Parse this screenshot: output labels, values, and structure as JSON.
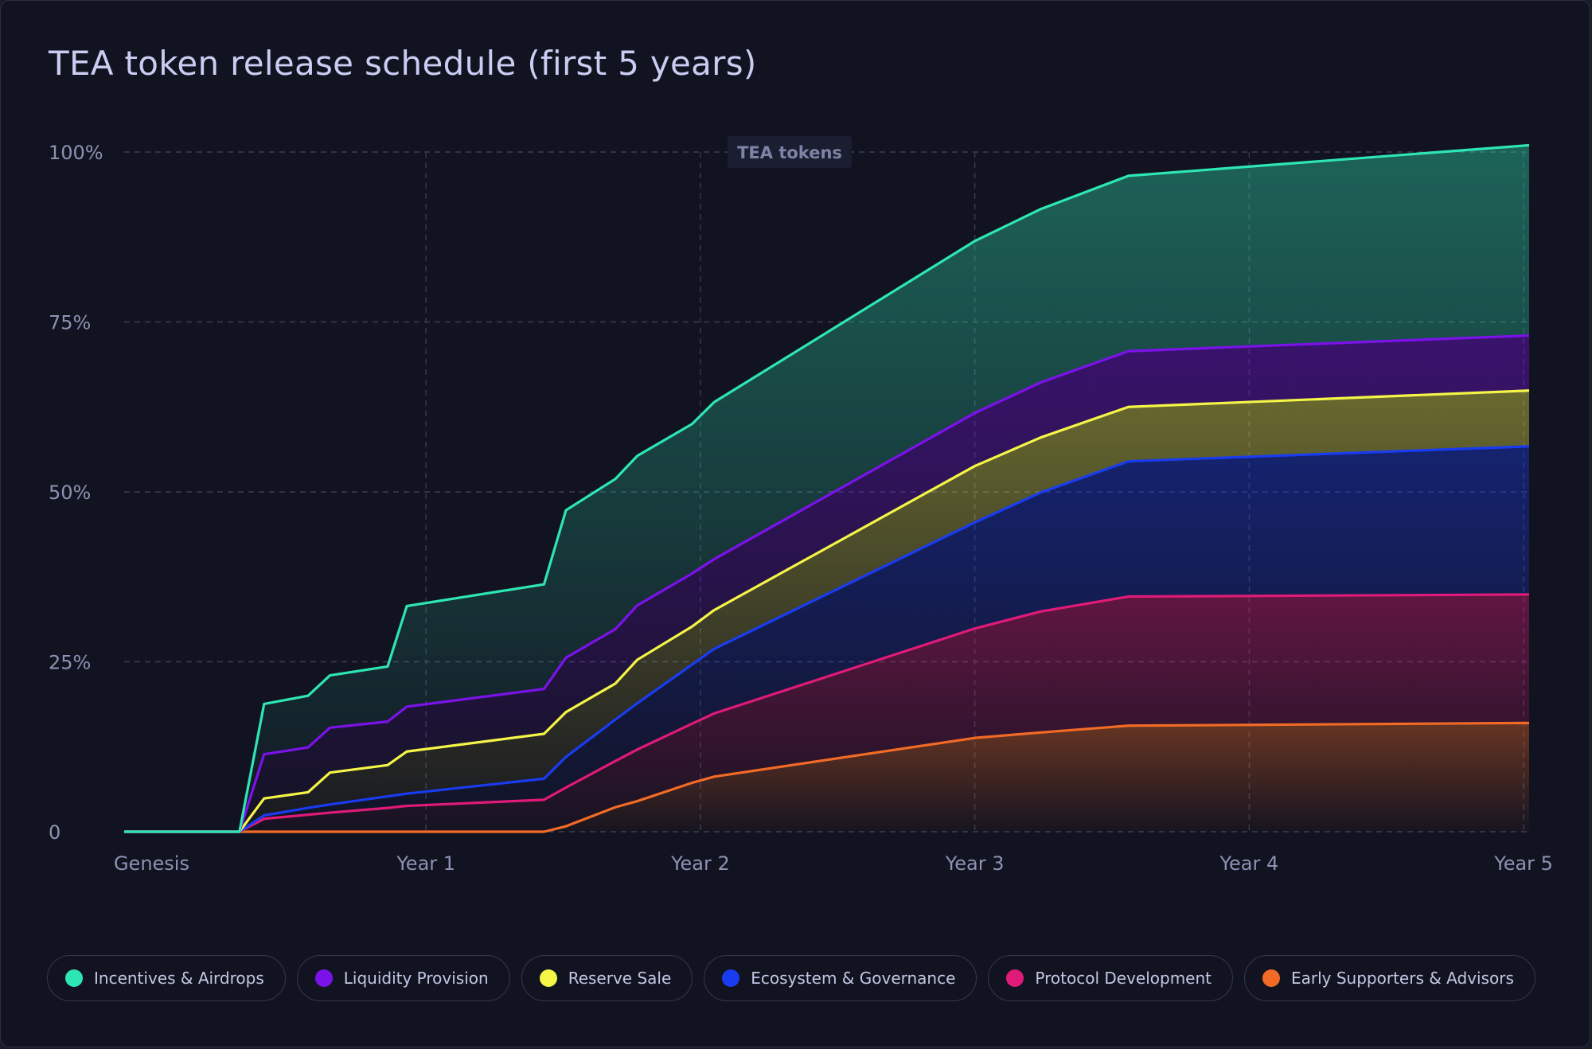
{
  "chart_data": {
    "type": "area",
    "title": "TEA token release schedule (first 5 years)",
    "tooltip_label": "TEA tokens",
    "ylabel": "",
    "xlabel": "",
    "yticks": [
      "0",
      "25%",
      "50%",
      "75%",
      "100%"
    ],
    "xticks": [
      "Genesis",
      "Year 1",
      "Year 2",
      "Year 3",
      "Year 4",
      "Year 5"
    ],
    "xlim": [
      -0.1,
      5.02
    ],
    "ylim": [
      0,
      100
    ],
    "x": [
      -0.1,
      0.32,
      0.41,
      0.57,
      0.65,
      0.86,
      0.93,
      1.43,
      1.51,
      1.69,
      1.77,
      1.97,
      2.05,
      3.0,
      3.24,
      3.56,
      5.02
    ],
    "series": [
      {
        "name": "Early Supporters & Advisors",
        "color": "#f26b26",
        "values": [
          0,
          0,
          0,
          0,
          0,
          0,
          0,
          0,
          0.8,
          3.6,
          4.5,
          7.2,
          8.1,
          13.8,
          14.6,
          15.6,
          16.0
        ]
      },
      {
        "name": "Protocol Development",
        "color": "#e01a78",
        "values": [
          0,
          0,
          1.9,
          2.5,
          2.8,
          3.5,
          3.8,
          4.7,
          6.5,
          10.4,
          12.1,
          15.9,
          17.4,
          29.9,
          32.4,
          34.6,
          34.9
        ]
      },
      {
        "name": "Ecosystem & Governance",
        "color": "#1a3cf0",
        "values": [
          0,
          0,
          2.4,
          3.5,
          4.0,
          5.2,
          5.6,
          7.8,
          11.0,
          16.5,
          18.9,
          24.6,
          26.9,
          45.5,
          49.9,
          54.5,
          56.7
        ]
      },
      {
        "name": "Reserve Sale",
        "color": "#f5f547",
        "values": [
          0,
          0,
          4.9,
          5.8,
          8.7,
          9.8,
          11.8,
          14.4,
          17.6,
          21.8,
          25.3,
          30.2,
          32.6,
          53.8,
          58.0,
          62.5,
          64.9
        ]
      },
      {
        "name": "Liquidity Provision",
        "color": "#7b12ea",
        "values": [
          0,
          0,
          11.4,
          12.4,
          15.3,
          16.2,
          18.4,
          21.0,
          25.6,
          29.8,
          33.3,
          38.0,
          40.1,
          61.6,
          66.1,
          70.7,
          73.0
        ]
      },
      {
        "name": "Incentives & Airdrops",
        "color": "#2ee6b4",
        "values": [
          0,
          0,
          18.8,
          20.0,
          23.0,
          24.3,
          33.2,
          36.4,
          47.3,
          51.9,
          55.3,
          60.0,
          63.2,
          86.9,
          91.6,
          96.5,
          101.0
        ]
      }
    ],
    "legend_position": "bottom",
    "legend": [
      {
        "label": "Incentives & Airdrops",
        "color": "#2ee6b4"
      },
      {
        "label": "Liquidity Provision",
        "color": "#7b12ea"
      },
      {
        "label": "Reserve Sale",
        "color": "#f5f547"
      },
      {
        "label": "Ecosystem & Governance",
        "color": "#1a3cf0"
      },
      {
        "label": "Protocol Development",
        "color": "#e01a78"
      },
      {
        "label": "Early Supporters & Advisors",
        "color": "#f26b26"
      }
    ]
  }
}
